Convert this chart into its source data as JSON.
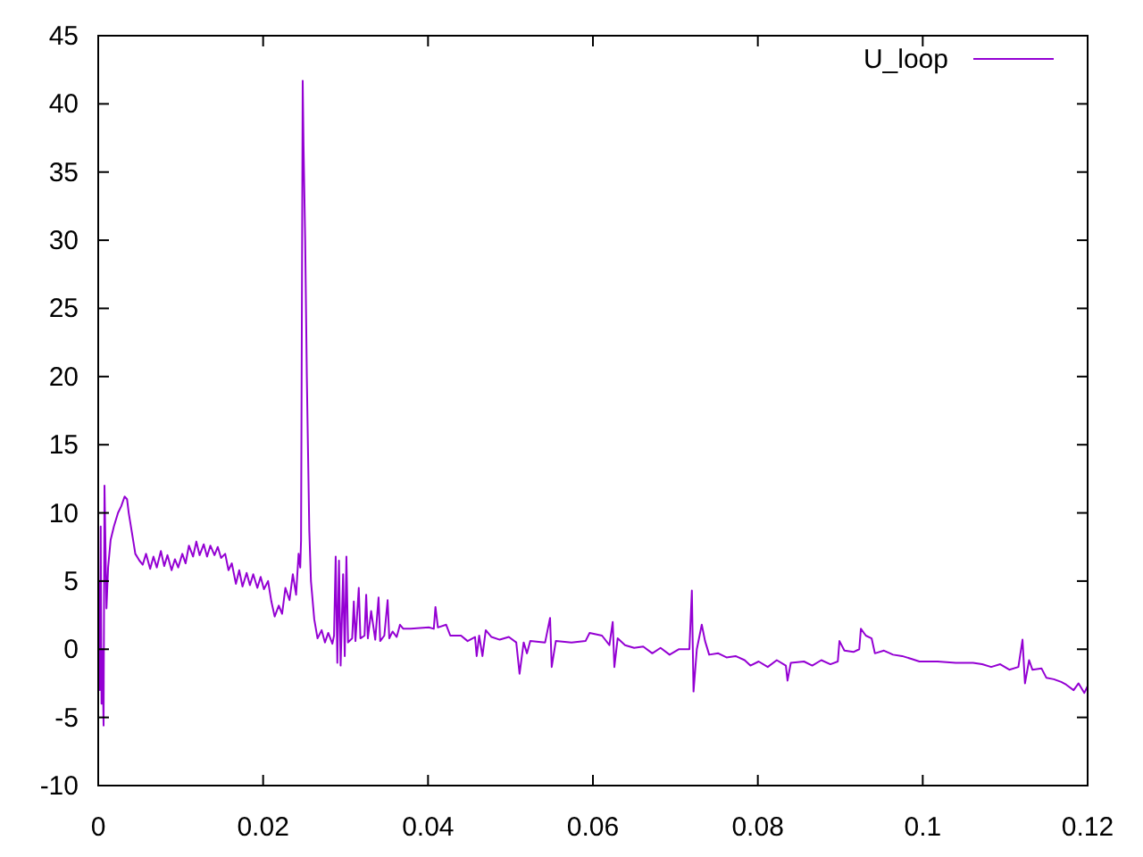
{
  "chart_data": {
    "type": "line",
    "x": [
      0.0001,
      0.0002,
      0.0003,
      0.0004,
      0.0005,
      0.00065,
      0.00076,
      0.001,
      0.0012,
      0.0015,
      0.0019,
      0.0024,
      0.0028,
      0.0032,
      0.0035,
      0.0037,
      0.0041,
      0.0045,
      0.005,
      0.0054,
      0.0058,
      0.0063,
      0.0067,
      0.0071,
      0.0076,
      0.008,
      0.0084,
      0.0089,
      0.0093,
      0.0097,
      0.0102,
      0.0106,
      0.011,
      0.0115,
      0.0119,
      0.0123,
      0.0128,
      0.0132,
      0.0136,
      0.0141,
      0.0145,
      0.0149,
      0.0154,
      0.0158,
      0.0162,
      0.0167,
      0.0171,
      0.0175,
      0.018,
      0.0184,
      0.0188,
      0.0193,
      0.0197,
      0.0201,
      0.0206,
      0.021,
      0.0214,
      0.0219,
      0.0223,
      0.0227,
      0.0232,
      0.0236,
      0.024,
      0.0243,
      0.0245,
      0.0246,
      0.0248,
      0.0249,
      0.0251,
      0.0253,
      0.0256,
      0.0258,
      0.0262,
      0.0266,
      0.0271,
      0.0275,
      0.0279,
      0.0284,
      0.0286,
      0.0288,
      0.029,
      0.0292,
      0.0294,
      0.0297,
      0.0299,
      0.0301,
      0.0303,
      0.0308,
      0.031,
      0.0312,
      0.0316,
      0.0318,
      0.0323,
      0.0325,
      0.0327,
      0.0331,
      0.0336,
      0.034,
      0.0342,
      0.0347,
      0.0351,
      0.0353,
      0.0357,
      0.0362,
      0.0366,
      0.037,
      0.0379,
      0.0401,
      0.0407,
      0.0409,
      0.0412,
      0.0422,
      0.0427,
      0.044,
      0.0448,
      0.0457,
      0.0459,
      0.0462,
      0.0466,
      0.047,
      0.0477,
      0.0487,
      0.0498,
      0.0507,
      0.0511,
      0.0516,
      0.052,
      0.0524,
      0.0542,
      0.0548,
      0.055,
      0.0555,
      0.0574,
      0.0591,
      0.0596,
      0.0611,
      0.062,
      0.0624,
      0.0626,
      0.063,
      0.0639,
      0.065,
      0.0661,
      0.0672,
      0.0682,
      0.0693,
      0.0704,
      0.0717,
      0.072,
      0.0722,
      0.0726,
      0.0732,
      0.0736,
      0.0741,
      0.0752,
      0.0762,
      0.0773,
      0.0784,
      0.0791,
      0.0801,
      0.0812,
      0.0823,
      0.0834,
      0.0836,
      0.084,
      0.0856,
      0.0866,
      0.0877,
      0.0888,
      0.0897,
      0.0899,
      0.0905,
      0.0916,
      0.0923,
      0.0925,
      0.0931,
      0.0938,
      0.0942,
      0.0953,
      0.0964,
      0.0975,
      0.0986,
      0.0996,
      0.1018,
      0.104,
      0.1061,
      0.1072,
      0.1083,
      0.1094,
      0.1105,
      0.1116,
      0.1121,
      0.1124,
      0.1129,
      0.1133,
      0.1144,
      0.115,
      0.1159,
      0.1168,
      0.1174,
      0.1183,
      0.1189,
      0.1196,
      0.12
    ],
    "series": [
      {
        "name": "U_loop",
        "color": "#9400d3",
        "values": [
          5,
          -3,
          9,
          -4,
          0,
          -5.6,
          12,
          3,
          6,
          8,
          9,
          10,
          10.5,
          11.2,
          11,
          10,
          8.5,
          7,
          6.5,
          6.2,
          7,
          5.9,
          6.8,
          6,
          7.2,
          6.1,
          6.9,
          5.8,
          6.6,
          6,
          7,
          6.3,
          7.6,
          6.8,
          7.9,
          6.9,
          7.7,
          6.8,
          7.6,
          6.9,
          7.5,
          6.7,
          7,
          5.8,
          6.3,
          4.8,
          5.8,
          4.6,
          5.6,
          4.7,
          5.5,
          4.5,
          5.3,
          4.4,
          5,
          3.5,
          2.4,
          3.2,
          2.6,
          4.5,
          3.6,
          5.5,
          4,
          7,
          6,
          8,
          41.7,
          37,
          30,
          20,
          8.7,
          5,
          2.2,
          0.8,
          1.4,
          0.5,
          1.2,
          0.4,
          1,
          6.8,
          -1,
          6.5,
          -1.2,
          5.5,
          -0.5,
          6.8,
          0.5,
          0.8,
          3.5,
          0.6,
          4.5,
          0.8,
          1,
          4,
          0.8,
          2.8,
          0.7,
          3.8,
          0.6,
          1,
          3.6,
          0.8,
          1.3,
          0.9,
          1.8,
          1.5,
          1.5,
          1.6,
          1.5,
          3.1,
          1.6,
          1.8,
          1,
          1,
          0.6,
          0.9,
          -0.5,
          1,
          -0.5,
          1.4,
          0.9,
          0.7,
          0.9,
          0.5,
          -1.8,
          0.5,
          -0.3,
          0.6,
          0.5,
          2.3,
          -1.3,
          0.6,
          0.5,
          0.6,
          1.2,
          1,
          0.3,
          2,
          -1.3,
          0.8,
          0.3,
          0.1,
          0.2,
          -0.3,
          0.1,
          -0.4,
          0,
          0,
          4.3,
          -3.1,
          0,
          1.8,
          0.6,
          -0.4,
          -0.3,
          -0.6,
          -0.5,
          -0.8,
          -1.2,
          -0.9,
          -1.3,
          -0.8,
          -1.2,
          -2.3,
          -1,
          -0.9,
          -1.2,
          -0.8,
          -1.1,
          -0.9,
          0.6,
          -0.1,
          -0.2,
          0,
          1.5,
          1,
          0.8,
          -0.3,
          -0.1,
          -0.4,
          -0.5,
          -0.7,
          -0.9,
          -0.9,
          -1,
          -1,
          -1.1,
          -1.3,
          -1.1,
          -1.5,
          -1.3,
          0.7,
          -2.5,
          -0.8,
          -1.5,
          -1.4,
          -2.1,
          -2.2,
          -2.4,
          -2.6,
          -3,
          -2.5,
          -3.2,
          -2.7
        ]
      }
    ],
    "xlim": [
      0,
      0.12
    ],
    "xticks": [
      0,
      0.02,
      0.04,
      0.06,
      0.08,
      0.1,
      0.12
    ],
    "ylim": [
      -10,
      45
    ],
    "yticks": [
      -10,
      -5,
      0,
      5,
      10,
      15,
      20,
      25,
      30,
      35,
      40,
      45
    ],
    "legend": "top right",
    "grid": false
  }
}
